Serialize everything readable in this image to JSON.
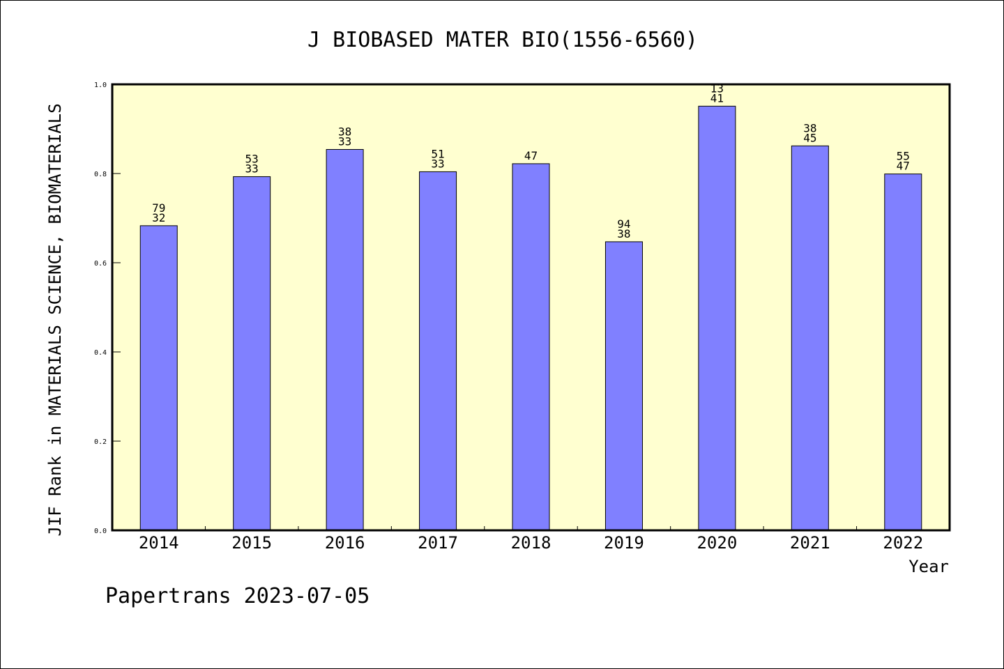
{
  "chart_data": {
    "type": "bar",
    "title": "J BIOBASED MATER BIO(1556-6560)",
    "xlabel": "Year",
    "ylabel": "JIF Rank in MATERIALS SCIENCE, BIOMATERIALS",
    "categories": [
      "2014",
      "2015",
      "2016",
      "2017",
      "2018",
      "2019",
      "2020",
      "2021",
      "2022"
    ],
    "values": [
      0.683,
      0.793,
      0.854,
      0.804,
      0.822,
      0.647,
      0.951,
      0.862,
      0.799
    ],
    "data_labels": [
      [
        "79",
        "32"
      ],
      [
        "53",
        "33"
      ],
      [
        "38",
        "33"
      ],
      [
        "51",
        "33"
      ],
      [
        "47"
      ],
      [
        "94",
        "38"
      ],
      [
        "13",
        "41"
      ],
      [
        "38",
        "45"
      ],
      [
        "55",
        "47"
      ]
    ],
    "ylim": [
      0,
      1.0
    ],
    "yticks": [
      "0.0",
      "0.2",
      "0.4",
      "0.6",
      "0.8",
      "1.0"
    ],
    "grid": false,
    "colors": {
      "plot_background": "#ffffd0",
      "bar_fill": "#8080ff",
      "bar_stroke": "#000000"
    }
  },
  "footer": "Papertrans 2023-07-05"
}
